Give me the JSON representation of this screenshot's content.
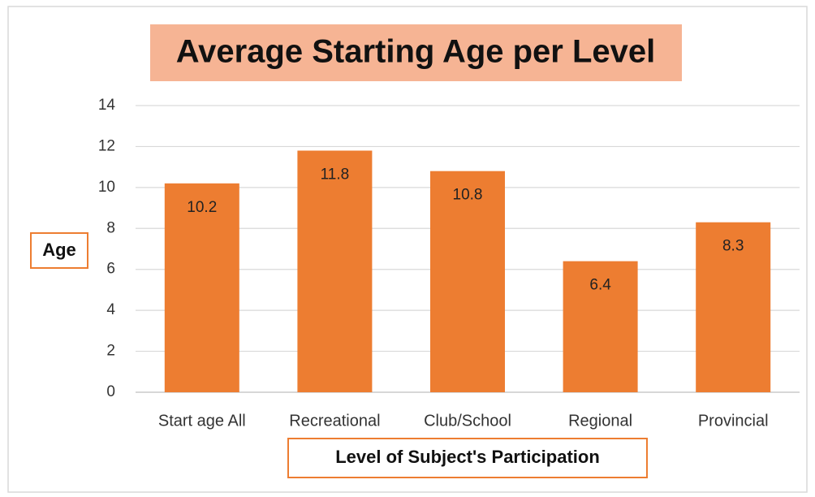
{
  "chart_data": {
    "type": "bar",
    "title": "Average Starting Age per Level",
    "categories": [
      "Start age All",
      "Recreational",
      "Club/School",
      "Regional",
      "Provincial"
    ],
    "values": [
      10.2,
      11.8,
      10.8,
      6.4,
      8.3
    ],
    "color": "#ed7d31",
    "xlabel": "Level of Subject's Participation",
    "ylabel": "Age",
    "ylim": [
      0,
      14
    ],
    "yticks": [
      0,
      2,
      4,
      6,
      8,
      10,
      12,
      14
    ],
    "grid": true
  }
}
